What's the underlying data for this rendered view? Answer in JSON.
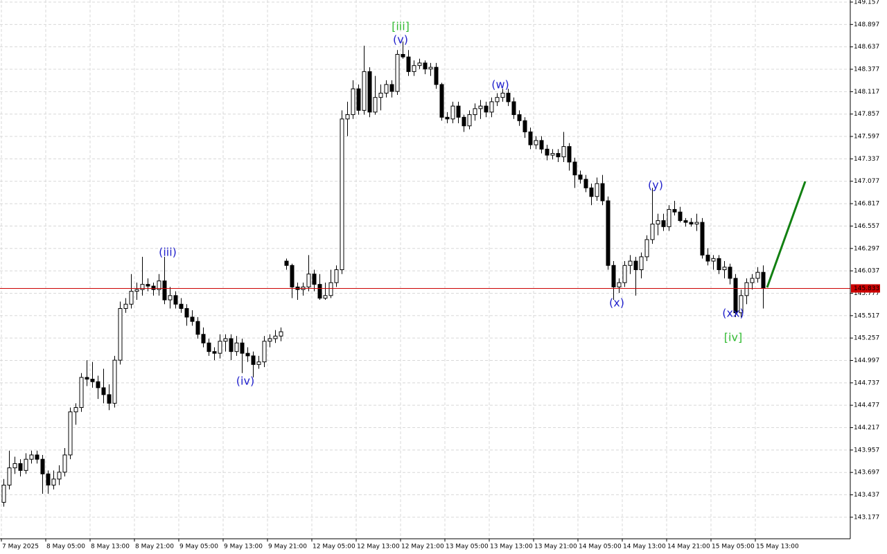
{
  "chart_data": {
    "type": "candlestick",
    "categories": [
      "7 May 2025",
      null,
      null,
      null,
      null,
      null,
      null,
      null,
      "8 May 05:00",
      null,
      null,
      null,
      null,
      null,
      null,
      null,
      "8 May 13:00",
      null,
      null,
      null,
      null,
      null,
      null,
      null,
      "8 May 21:00",
      null,
      null,
      null,
      null,
      null,
      null,
      null,
      "9 May 05:00",
      null,
      null,
      null,
      null,
      null,
      null,
      null,
      "9 May 13:00",
      null,
      null,
      null,
      null,
      null,
      null,
      null,
      "9 May 21:00",
      null,
      null,
      null,
      null,
      null,
      null,
      null,
      "12 May 05:00",
      null,
      null,
      null,
      null,
      null,
      null,
      null,
      "12 May 13:00",
      null,
      null,
      null,
      null,
      null,
      null,
      null,
      "12 May 21:00",
      null,
      null,
      null,
      null,
      null,
      null,
      null,
      "13 May 05:00",
      null,
      null,
      null,
      null,
      null,
      null,
      null,
      "13 May 13:00",
      null,
      null,
      null,
      null,
      null,
      null,
      null,
      "13 May 21:00",
      null,
      null,
      null,
      null,
      null,
      null,
      null,
      "14 May 05:00",
      null,
      null,
      null,
      null,
      null,
      null,
      null,
      "14 May 13:00",
      null,
      null,
      null,
      null,
      null,
      null,
      null,
      "14 May 21:00",
      null,
      null,
      null,
      null,
      null,
      null,
      null,
      "15 May 05:00",
      null,
      null,
      null,
      null,
      null,
      null,
      null,
      "15 May 13:00",
      null
    ],
    "ohlc": [
      [
        143.35,
        143.62,
        143.3,
        143.55
      ],
      [
        143.55,
        143.95,
        143.5,
        143.75
      ],
      [
        143.75,
        143.88,
        143.68,
        143.8
      ],
      [
        143.8,
        143.85,
        143.65,
        143.72
      ],
      [
        143.72,
        143.92,
        143.68,
        143.85
      ],
      [
        143.85,
        143.95,
        143.8,
        143.9
      ],
      [
        143.9,
        143.95,
        143.8,
        143.85
      ],
      [
        143.85,
        143.9,
        143.45,
        143.68
      ],
      [
        143.68,
        143.72,
        143.45,
        143.55
      ],
      [
        143.55,
        143.72,
        143.5,
        143.62
      ],
      [
        143.62,
        143.78,
        143.55,
        143.7
      ],
      [
        143.7,
        143.98,
        143.65,
        143.9
      ],
      [
        143.9,
        144.45,
        143.85,
        144.4
      ],
      [
        144.4,
        144.5,
        144.25,
        144.45
      ],
      [
        144.45,
        144.85,
        144.4,
        144.8
      ],
      [
        144.8,
        145.0,
        144.7,
        144.78
      ],
      [
        144.78,
        144.98,
        144.68,
        144.75
      ],
      [
        144.75,
        144.82,
        144.55,
        144.68
      ],
      [
        144.68,
        144.9,
        144.5,
        144.6
      ],
      [
        144.6,
        144.72,
        144.42,
        144.5
      ],
      [
        144.5,
        145.05,
        144.45,
        145.0
      ],
      [
        145.0,
        145.68,
        144.95,
        145.6
      ],
      [
        145.6,
        145.72,
        145.55,
        145.65
      ],
      [
        145.65,
        146.0,
        145.6,
        145.8
      ],
      [
        145.8,
        145.9,
        145.7,
        145.82
      ],
      [
        145.82,
        146.2,
        145.75,
        145.88
      ],
      [
        145.88,
        145.95,
        145.8,
        145.86
      ],
      [
        145.86,
        145.9,
        145.75,
        145.82
      ],
      [
        145.82,
        146.0,
        145.75,
        145.92
      ],
      [
        145.92,
        146.2,
        145.65,
        145.7
      ],
      [
        145.7,
        145.85,
        145.6,
        145.75
      ],
      [
        145.75,
        145.8,
        145.6,
        145.65
      ],
      [
        145.65,
        145.72,
        145.55,
        145.6
      ],
      [
        145.6,
        145.65,
        145.4,
        145.5
      ],
      [
        145.5,
        145.58,
        145.4,
        145.45
      ],
      [
        145.45,
        145.5,
        145.25,
        145.3
      ],
      [
        145.3,
        145.38,
        145.15,
        145.2
      ],
      [
        145.2,
        145.25,
        145.05,
        145.1
      ],
      [
        145.1,
        145.15,
        145.0,
        145.08
      ],
      [
        145.08,
        145.3,
        145.02,
        145.22
      ],
      [
        145.22,
        145.3,
        145.1,
        145.25
      ],
      [
        145.25,
        145.3,
        145.0,
        145.1
      ],
      [
        145.1,
        145.28,
        145.05,
        145.2
      ],
      [
        145.2,
        145.25,
        144.85,
        145.08
      ],
      [
        145.08,
        145.15,
        144.98,
        145.05
      ],
      [
        145.05,
        145.1,
        144.8,
        144.95
      ],
      [
        144.95,
        145.05,
        144.9,
        144.98
      ],
      [
        144.98,
        145.28,
        144.92,
        145.22
      ],
      [
        145.22,
        145.3,
        145.15,
        145.25
      ],
      [
        145.25,
        145.35,
        145.2,
        145.28
      ],
      [
        145.28,
        145.38,
        145.22,
        145.33
      ],
      [
        146.15,
        146.18,
        146.05,
        146.1
      ],
      [
        146.1,
        146.12,
        145.72,
        145.85
      ],
      [
        145.85,
        145.9,
        145.7,
        145.82
      ],
      [
        145.82,
        145.9,
        145.75,
        145.85
      ],
      [
        145.85,
        146.22,
        145.8,
        146.0
      ],
      [
        146.0,
        146.05,
        145.8,
        145.88
      ],
      [
        145.88,
        146.0,
        145.7,
        145.72
      ],
      [
        145.72,
        145.9,
        145.7,
        145.75
      ],
      [
        145.75,
        146.05,
        145.72,
        145.9
      ],
      [
        145.9,
        146.1,
        145.85,
        146.05
      ],
      [
        146.05,
        147.9,
        146.0,
        147.8
      ],
      [
        147.8,
        148.0,
        147.6,
        147.85
      ],
      [
        147.85,
        148.25,
        147.8,
        148.15
      ],
      [
        148.15,
        148.2,
        147.85,
        147.9
      ],
      [
        147.9,
        148.65,
        147.85,
        148.35
      ],
      [
        148.35,
        148.4,
        147.82,
        147.88
      ],
      [
        147.88,
        148.3,
        147.85,
        148.05
      ],
      [
        148.05,
        148.2,
        147.9,
        148.1
      ],
      [
        148.1,
        148.25,
        148.05,
        148.2
      ],
      [
        148.2,
        148.25,
        148.05,
        148.12
      ],
      [
        148.12,
        148.6,
        148.08,
        148.55
      ],
      [
        148.55,
        148.7,
        148.5,
        148.52
      ],
      [
        148.52,
        148.6,
        148.3,
        148.35
      ],
      [
        148.35,
        148.48,
        148.3,
        148.42
      ],
      [
        148.42,
        148.5,
        148.38,
        148.45
      ],
      [
        148.45,
        148.48,
        148.32,
        148.38
      ],
      [
        148.38,
        148.45,
        148.3,
        148.4
      ],
      [
        148.4,
        148.45,
        148.15,
        148.2
      ],
      [
        148.2,
        148.22,
        147.78,
        147.82
      ],
      [
        147.82,
        147.88,
        147.75,
        147.8
      ],
      [
        147.8,
        148.0,
        147.75,
        147.95
      ],
      [
        147.95,
        148.0,
        147.75,
        147.82
      ],
      [
        147.82,
        147.85,
        147.65,
        147.72
      ],
      [
        147.72,
        147.9,
        147.68,
        147.85
      ],
      [
        147.85,
        147.98,
        147.78,
        147.92
      ],
      [
        147.92,
        148.02,
        147.8,
        147.95
      ],
      [
        147.95,
        148.0,
        147.82,
        147.88
      ],
      [
        147.88,
        148.05,
        147.82,
        148.0
      ],
      [
        148.0,
        148.1,
        147.95,
        148.05
      ],
      [
        148.05,
        148.15,
        148.0,
        148.1
      ],
      [
        148.1,
        148.15,
        147.95,
        148.0
      ],
      [
        148.0,
        148.05,
        147.8,
        147.85
      ],
      [
        147.85,
        147.9,
        147.72,
        147.78
      ],
      [
        147.78,
        147.82,
        147.58,
        147.65
      ],
      [
        147.65,
        147.7,
        147.45,
        147.5
      ],
      [
        147.5,
        147.6,
        147.45,
        147.55
      ],
      [
        147.55,
        147.6,
        147.4,
        147.45
      ],
      [
        147.45,
        147.5,
        147.32,
        147.38
      ],
      [
        147.38,
        147.45,
        147.33,
        147.4
      ],
      [
        147.4,
        147.45,
        147.3,
        147.36
      ],
      [
        147.36,
        147.65,
        147.3,
        147.48
      ],
      [
        147.48,
        147.52,
        147.2,
        147.3
      ],
      [
        147.3,
        147.35,
        147.0,
        147.15
      ],
      [
        147.15,
        147.2,
        147.05,
        147.1
      ],
      [
        147.1,
        147.15,
        146.95,
        147.0
      ],
      [
        147.0,
        147.05,
        146.8,
        146.9
      ],
      [
        146.9,
        147.12,
        146.85,
        147.05
      ],
      [
        147.05,
        147.15,
        146.8,
        146.85
      ],
      [
        146.85,
        146.9,
        146.05,
        146.1
      ],
      [
        146.1,
        146.15,
        145.7,
        145.85
      ],
      [
        145.85,
        145.95,
        145.78,
        145.9
      ],
      [
        145.9,
        146.15,
        145.85,
        146.1
      ],
      [
        146.1,
        146.22,
        146.0,
        146.15
      ],
      [
        146.15,
        146.2,
        145.75,
        146.05
      ],
      [
        146.05,
        146.25,
        145.95,
        146.2
      ],
      [
        146.2,
        146.45,
        146.15,
        146.4
      ],
      [
        146.4,
        147.0,
        146.35,
        146.58
      ],
      [
        146.58,
        146.7,
        146.45,
        146.62
      ],
      [
        146.62,
        146.7,
        146.5,
        146.55
      ],
      [
        146.55,
        146.8,
        146.5,
        146.75
      ],
      [
        146.75,
        146.85,
        146.68,
        146.72
      ],
      [
        146.72,
        146.78,
        146.6,
        146.62
      ],
      [
        146.62,
        146.65,
        146.55,
        146.6
      ],
      [
        146.6,
        146.65,
        146.55,
        146.58
      ],
      [
        146.58,
        146.7,
        146.5,
        146.6
      ],
      [
        146.6,
        146.65,
        146.18,
        146.22
      ],
      [
        146.22,
        146.3,
        146.1,
        146.15
      ],
      [
        146.15,
        146.22,
        146.05,
        146.18
      ],
      [
        146.18,
        146.22,
        146.0,
        146.05
      ],
      [
        146.05,
        146.15,
        145.95,
        146.08
      ],
      [
        146.08,
        146.12,
        145.88,
        145.95
      ],
      [
        145.95,
        146.0,
        145.5,
        145.55
      ],
      [
        145.55,
        145.82,
        145.5,
        145.75
      ],
      [
        145.75,
        145.95,
        145.65,
        145.9
      ],
      [
        145.9,
        146.0,
        145.82,
        145.95
      ],
      [
        145.95,
        146.08,
        145.9,
        146.02
      ],
      [
        146.02,
        146.1,
        145.6,
        145.833
      ]
    ],
    "up_color": "#ffffff",
    "down_color": "#000000",
    "ylim": [
      142.927,
      149.181
    ],
    "yticks": [
      149.157,
      148.897,
      148.637,
      148.377,
      148.117,
      147.857,
      147.597,
      147.337,
      147.077,
      146.817,
      146.557,
      146.297,
      146.037,
      145.777,
      145.517,
      145.257,
      144.997,
      144.737,
      144.477,
      144.217,
      143.957,
      143.697,
      143.437,
      143.177
    ],
    "grid": true,
    "current_price": 145.833,
    "annotations": [
      {
        "text": "(iii)",
        "color": "#2222cc"
      },
      {
        "text": "(iv)",
        "color": "#2222cc"
      },
      {
        "text": "[iii]",
        "color": "#33bb33"
      },
      {
        "text": "(v)",
        "color": "#2222cc"
      },
      {
        "text": "(w)",
        "color": "#2222cc"
      },
      {
        "text": "(x)",
        "color": "#2222cc"
      },
      {
        "text": "(y)",
        "color": "#2222cc"
      },
      {
        "text": "(xx)",
        "color": "#2222cc"
      },
      {
        "text": "[iv]",
        "color": "#33bb33"
      }
    ]
  }
}
